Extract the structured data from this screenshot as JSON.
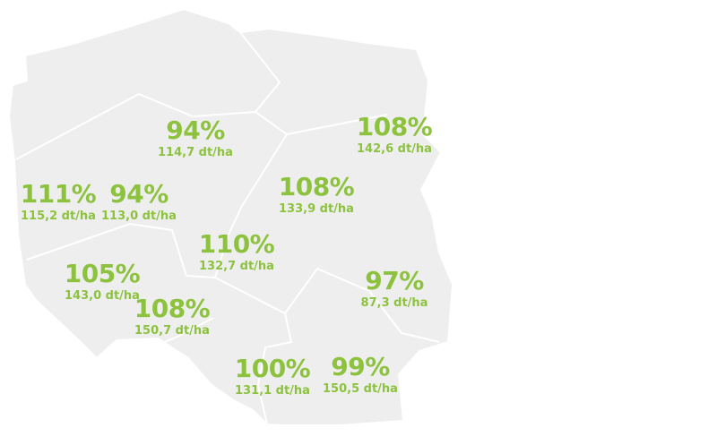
{
  "colors": {
    "land": "#eeeeee",
    "border": "#ffffff",
    "label": "#8dc23f"
  },
  "regions": [
    {
      "id": "pomorskie-north",
      "percent": "94%",
      "yield": "114,7 dt/ha"
    },
    {
      "id": "north-east",
      "percent": "108%",
      "yield": "142,6 dt/ha"
    },
    {
      "id": "west",
      "percent": "111%",
      "yield": "115,2 dt/ha"
    },
    {
      "id": "kujawsko",
      "percent": "94%",
      "yield": "113,0 dt/ha"
    },
    {
      "id": "mazowsze",
      "percent": "108%",
      "yield": "133,9 dt/ha"
    },
    {
      "id": "lodzkie",
      "percent": "110%",
      "yield": "132,7 dt/ha"
    },
    {
      "id": "south-west",
      "percent": "105%",
      "yield": "143,0 dt/ha"
    },
    {
      "id": "opolskie",
      "percent": "108%",
      "yield": "150,7 dt/ha"
    },
    {
      "id": "east",
      "percent": "97%",
      "yield": "87,3 dt/ha"
    },
    {
      "id": "slask",
      "percent": "100%",
      "yield": "131,1 dt/ha"
    },
    {
      "id": "south-east",
      "percent": "99%",
      "yield": "150,5 dt/ha"
    }
  ]
}
